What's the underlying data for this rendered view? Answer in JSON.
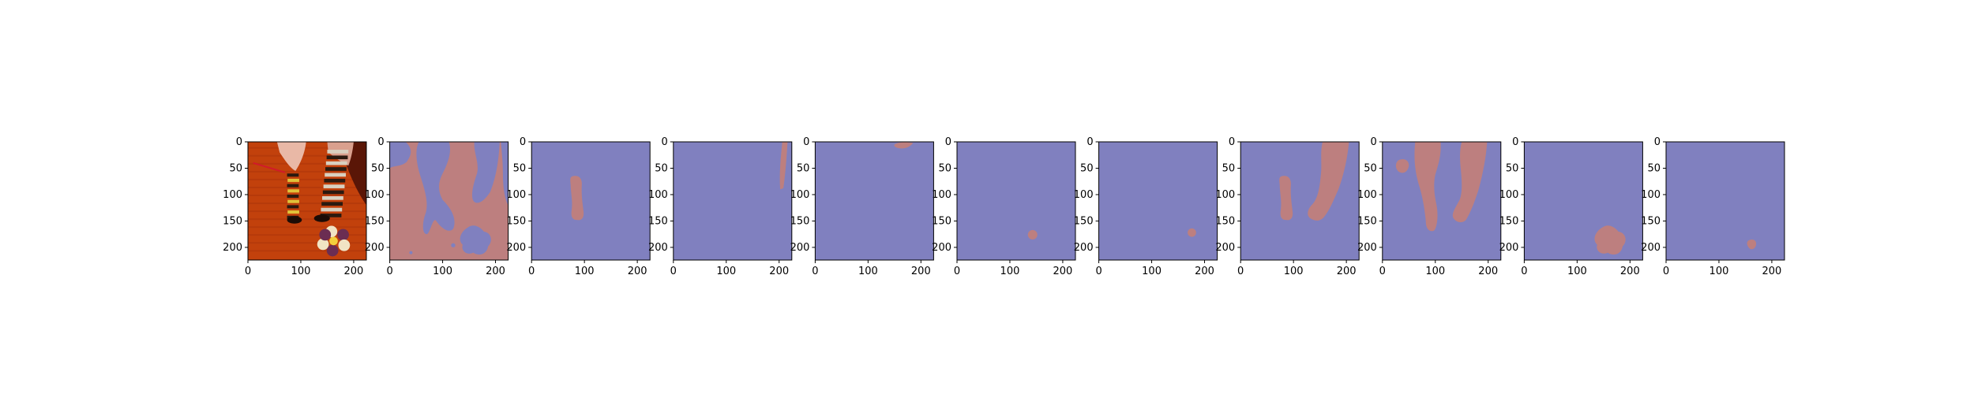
{
  "figure": {
    "panel_count": 11,
    "x_ticks": [
      "0",
      "100",
      "200"
    ],
    "y_ticks": [
      "0",
      "50",
      "100",
      "150",
      "200"
    ],
    "image_width": 224,
    "image_height": 224,
    "colors": {
      "background_mask": "#8080bf",
      "foreground_mask": "#bd7f7f",
      "axis": "#000000",
      "photo_floor": "#c2410c",
      "photo_dark": "#5a1607",
      "photo_stripe": "#e0c23a"
    },
    "panels": [
      {
        "kind": "photo",
        "icon": "photo-of-striped-socks-and-flower"
      },
      {
        "kind": "mask",
        "icon": "mask-floor-region"
      },
      {
        "kind": "mask",
        "icon": "mask-left-sock"
      },
      {
        "kind": "mask",
        "icon": "mask-stick"
      },
      {
        "kind": "mask",
        "icon": "mask-top-edge"
      },
      {
        "kind": "mask",
        "icon": "mask-small-dot"
      },
      {
        "kind": "mask",
        "icon": "mask-small-dot-right"
      },
      {
        "kind": "mask",
        "icon": "mask-both-socks"
      },
      {
        "kind": "mask",
        "icon": "mask-legs"
      },
      {
        "kind": "mask",
        "icon": "mask-flower"
      },
      {
        "kind": "mask",
        "icon": "mask-flower-center"
      }
    ]
  }
}
